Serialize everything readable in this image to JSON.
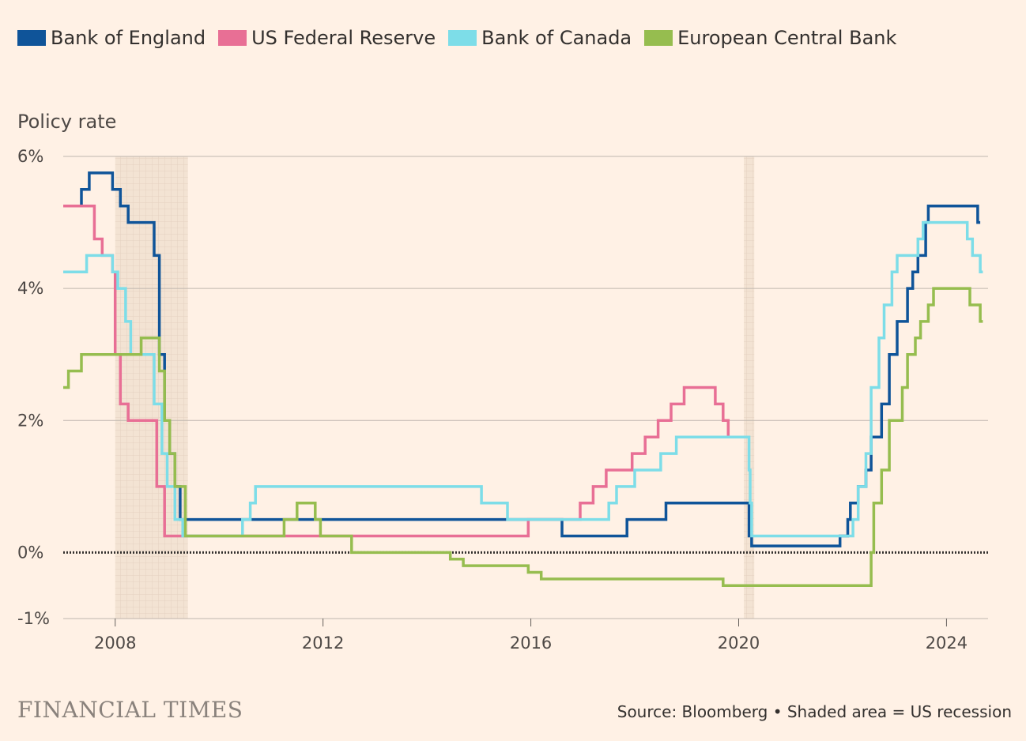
{
  "legend": [
    {
      "label": "Bank of England",
      "color": "#0f5499"
    },
    {
      "label": "US Federal Reserve",
      "color": "#e86f95"
    },
    {
      "label": "Bank of Canada",
      "color": "#7ddde8"
    },
    {
      "label": "European Central Bank",
      "color": "#96bd4f"
    }
  ],
  "y_title": "Policy rate",
  "footer": {
    "logo": "FINANCIAL TIMES",
    "source": "Source: Bloomberg • Shaded area = US recession"
  },
  "chart_data": {
    "type": "line",
    "step": true,
    "ylabel": "Policy rate",
    "xlim": [
      2007.0,
      2024.8
    ],
    "ylim": [
      -1,
      6
    ],
    "y_ticks": [
      {
        "value": 6,
        "label": "6%"
      },
      {
        "value": 4,
        "label": "4%"
      },
      {
        "value": 2,
        "label": "2%"
      },
      {
        "value": 0,
        "label": "0%"
      },
      {
        "value": -1,
        "label": "-1%"
      }
    ],
    "x_ticks": [
      {
        "value": 2008,
        "label": "2008"
      },
      {
        "value": 2012,
        "label": "2012"
      },
      {
        "value": 2016,
        "label": "2016"
      },
      {
        "value": 2020,
        "label": "2020"
      },
      {
        "value": 2024,
        "label": "2024"
      }
    ],
    "recessions": [
      [
        2008.0,
        2009.4
      ],
      [
        2020.1,
        2020.3
      ]
    ],
    "series": [
      {
        "name": "Bank of England",
        "color": "#0f5499",
        "points": [
          [
            2007.25,
            5.25
          ],
          [
            2007.35,
            5.5
          ],
          [
            2007.5,
            5.75
          ],
          [
            2007.95,
            5.5
          ],
          [
            2008.1,
            5.25
          ],
          [
            2008.25,
            5.0
          ],
          [
            2008.75,
            4.5
          ],
          [
            2008.85,
            3.0
          ],
          [
            2008.95,
            2.0
          ],
          [
            2009.05,
            1.5
          ],
          [
            2009.15,
            1.0
          ],
          [
            2009.25,
            0.5
          ],
          [
            2016.6,
            0.25
          ],
          [
            2017.85,
            0.5
          ],
          [
            2018.6,
            0.75
          ],
          [
            2020.2,
            0.25
          ],
          [
            2020.25,
            0.1
          ],
          [
            2021.95,
            0.25
          ],
          [
            2022.1,
            0.5
          ],
          [
            2022.15,
            0.75
          ],
          [
            2022.3,
            1.0
          ],
          [
            2022.45,
            1.25
          ],
          [
            2022.55,
            1.75
          ],
          [
            2022.75,
            2.25
          ],
          [
            2022.9,
            3.0
          ],
          [
            2023.05,
            3.5
          ],
          [
            2023.25,
            4.0
          ],
          [
            2023.35,
            4.25
          ],
          [
            2023.45,
            4.5
          ],
          [
            2023.6,
            5.0
          ],
          [
            2023.65,
            5.25
          ],
          [
            2024.6,
            5.0
          ]
        ],
        "end": 2024.65
      },
      {
        "name": "US Federal Reserve",
        "color": "#e86f95",
        "points": [
          [
            2007.0,
            5.25
          ],
          [
            2007.6,
            4.75
          ],
          [
            2007.75,
            4.5
          ],
          [
            2007.95,
            4.25
          ],
          [
            2008.0,
            3.0
          ],
          [
            2008.1,
            2.25
          ],
          [
            2008.25,
            2.0
          ],
          [
            2008.8,
            1.0
          ],
          [
            2008.95,
            0.25
          ],
          [
            2015.95,
            0.5
          ],
          [
            2016.95,
            0.75
          ],
          [
            2017.2,
            1.0
          ],
          [
            2017.45,
            1.25
          ],
          [
            2017.95,
            1.5
          ],
          [
            2018.2,
            1.75
          ],
          [
            2018.45,
            2.0
          ],
          [
            2018.7,
            2.25
          ],
          [
            2018.95,
            2.5
          ],
          [
            2019.55,
            2.25
          ],
          [
            2019.7,
            2.0
          ],
          [
            2019.8,
            1.75
          ]
        ],
        "end": 2019.85
      },
      {
        "name": "Bank of Canada",
        "color": "#7ddde8",
        "points": [
          [
            2007.0,
            4.25
          ],
          [
            2007.45,
            4.5
          ],
          [
            2007.95,
            4.25
          ],
          [
            2008.05,
            4.0
          ],
          [
            2008.2,
            3.5
          ],
          [
            2008.3,
            3.0
          ],
          [
            2008.75,
            2.25
          ],
          [
            2008.9,
            1.5
          ],
          [
            2009.0,
            1.0
          ],
          [
            2009.15,
            0.5
          ],
          [
            2009.3,
            0.25
          ],
          [
            2010.45,
            0.5
          ],
          [
            2010.6,
            0.75
          ],
          [
            2010.7,
            1.0
          ],
          [
            2015.05,
            0.75
          ],
          [
            2015.55,
            0.5
          ],
          [
            2017.5,
            0.75
          ],
          [
            2017.65,
            1.0
          ],
          [
            2018.0,
            1.25
          ],
          [
            2018.5,
            1.5
          ],
          [
            2018.8,
            1.75
          ],
          [
            2020.2,
            1.25
          ],
          [
            2020.22,
            0.75
          ],
          [
            2020.25,
            0.25
          ],
          [
            2022.2,
            0.5
          ],
          [
            2022.3,
            1.0
          ],
          [
            2022.45,
            1.5
          ],
          [
            2022.55,
            2.5
          ],
          [
            2022.7,
            3.25
          ],
          [
            2022.8,
            3.75
          ],
          [
            2022.95,
            4.25
          ],
          [
            2023.05,
            4.5
          ],
          [
            2023.45,
            4.75
          ],
          [
            2023.55,
            5.0
          ],
          [
            2024.4,
            4.75
          ],
          [
            2024.5,
            4.5
          ],
          [
            2024.65,
            4.25
          ]
        ],
        "end": 2024.7
      },
      {
        "name": "European Central Bank",
        "color": "#96bd4f",
        "points": [
          [
            2007.0,
            2.5
          ],
          [
            2007.1,
            2.75
          ],
          [
            2007.35,
            3.0
          ],
          [
            2008.5,
            3.25
          ],
          [
            2008.85,
            2.75
          ],
          [
            2008.95,
            2.0
          ],
          [
            2009.05,
            1.5
          ],
          [
            2009.15,
            1.0
          ],
          [
            2009.35,
            0.25
          ],
          [
            2011.25,
            0.5
          ],
          [
            2011.5,
            0.75
          ],
          [
            2011.85,
            0.5
          ],
          [
            2011.95,
            0.25
          ],
          [
            2012.55,
            0.0
          ],
          [
            2014.45,
            -0.1
          ],
          [
            2014.7,
            -0.2
          ],
          [
            2015.95,
            -0.3
          ],
          [
            2016.2,
            -0.4
          ],
          [
            2019.7,
            -0.5
          ],
          [
            2022.55,
            0.0
          ],
          [
            2022.6,
            0.75
          ],
          [
            2022.75,
            1.25
          ],
          [
            2022.9,
            2.0
          ],
          [
            2023.15,
            2.5
          ],
          [
            2023.25,
            3.0
          ],
          [
            2023.4,
            3.25
          ],
          [
            2023.5,
            3.5
          ],
          [
            2023.65,
            3.75
          ],
          [
            2023.75,
            4.0
          ],
          [
            2024.45,
            3.75
          ],
          [
            2024.65,
            3.5
          ]
        ],
        "end": 2024.7
      }
    ]
  }
}
